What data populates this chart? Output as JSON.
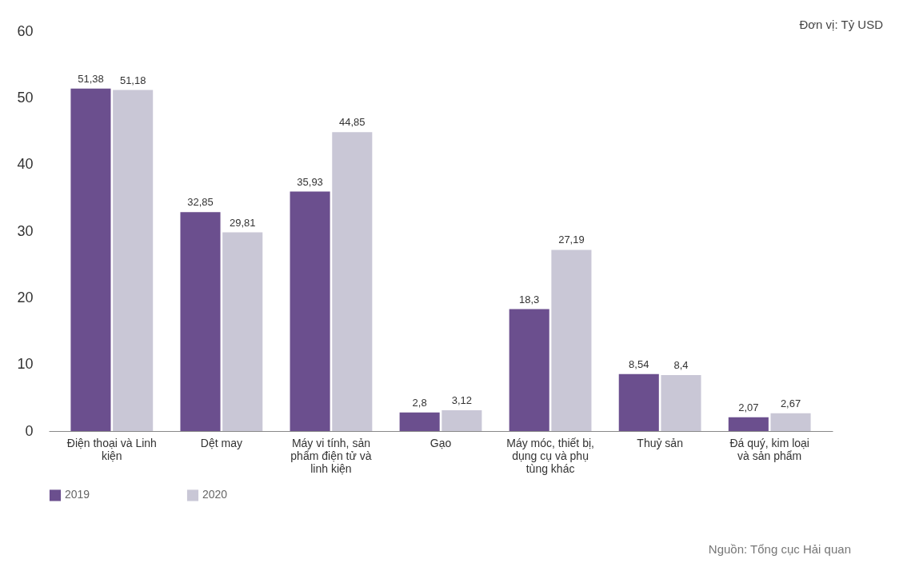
{
  "chart_data": {
    "type": "bar",
    "categories": [
      "Điện thoại và Linh kiện",
      "Dệt may",
      "Máy vi tính, sản phẩm điện tử và linh kiện",
      "Gạo",
      "Máy móc, thiết bị, dụng cụ và phụ tùng khác",
      "Thuỷ sản",
      "Đá quý, kim loại và sản phẩm"
    ],
    "series": [
      {
        "name": "2019",
        "color": "#6b4f8e",
        "values": [
          51.38,
          32.85,
          35.93,
          2.8,
          18.3,
          8.54,
          2.07
        ],
        "value_labels": [
          "51,38",
          "32,85",
          "35,93",
          "2,8",
          "18,3",
          "8,54",
          "2,07"
        ]
      },
      {
        "name": "2020",
        "color": "#c9c7d6",
        "values": [
          51.18,
          29.81,
          44.85,
          3.12,
          27.19,
          8.4,
          2.67
        ],
        "value_labels": [
          "51,18",
          "29,81",
          "44,85",
          "3,12",
          "27,19",
          "8,4",
          "2,67"
        ]
      }
    ],
    "ylim": [
      0,
      60
    ],
    "yticks": [
      0,
      10,
      20,
      30,
      40,
      50,
      60
    ],
    "legend": "bottom",
    "annotations": [
      "Đơn vị: Tỷ USD",
      "Nguồn: Tổng cục Hải quan"
    ]
  }
}
